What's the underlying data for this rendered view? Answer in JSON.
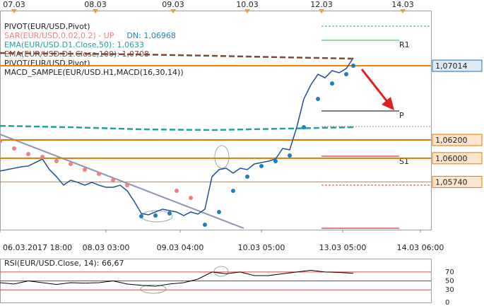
{
  "chart_data": {
    "type": "line",
    "legend": {
      "pivot": "PIVOT(EUR/USD,Pivot)",
      "pivot2": "PIVOT(EUR/USD,Pivot)",
      "macd": "MACD_SAMPLE(EUR/USD.H1,MACD(16,30,14))"
    },
    "level_names": {
      "r1": "R1",
      "p": "P",
      "s1": "S1"
    },
    "xlim": [
      0,
      122
    ],
    "xticks": [
      {
        "value": 0,
        "label": "06.03.2017 18:00"
      },
      {
        "value": 30,
        "label": "08.03 03:00"
      },
      {
        "value": 51,
        "label": "09.03 04:00"
      },
      {
        "value": 74,
        "label": "10.03 05:00"
      },
      {
        "value": 97,
        "label": "13.03 05:00"
      },
      {
        "value": 119,
        "label": "14.03 06:00"
      }
    ],
    "top_xticks": [
      {
        "value": 4,
        "label": "07.03"
      },
      {
        "value": 27,
        "label": "08.03"
      },
      {
        "value": 49,
        "label": "09.03"
      },
      {
        "value": 70,
        "label": "10.03"
      },
      {
        "value": 91,
        "label": "12.03"
      },
      {
        "value": 114,
        "label": "14.03"
      }
    ],
    "ylim": [
      1.05216,
      1.07619
    ],
    "yticks": [
      {
        "value": 1.07014,
        "label": "1,07014"
      },
      {
        "value": 1.062,
        "label": "1,06200"
      },
      {
        "value": 1.06,
        "label": "1,06000"
      },
      {
        "value": 1.0574,
        "label": "1,05740"
      }
    ],
    "level_colors": [
      "#1e6fb0",
      "#e07b00",
      "#e07b00",
      "#e07b00"
    ],
    "level_widths": [
      2,
      2,
      2,
      1
    ],
    "series": [
      {
        "color": "#1f4e9a",
        "x": [
          0,
          2,
          4,
          6,
          8,
          10,
          12,
          14,
          16,
          18,
          20,
          22,
          24,
          26,
          28,
          30,
          32,
          34,
          36,
          38,
          40,
          42,
          44,
          46,
          48,
          50,
          52,
          54,
          56,
          58,
          60,
          62,
          64,
          66,
          68,
          70,
          72,
          74,
          76,
          78,
          80,
          82,
          84,
          86,
          88,
          90,
          92,
          94,
          96,
          98,
          100
        ],
        "values": [
          1.05859,
          1.05875,
          1.0589,
          1.05906,
          1.05914,
          1.05952,
          1.05991,
          1.05875,
          1.05797,
          1.05704,
          1.05759,
          1.05735,
          1.05704,
          1.05735,
          1.05704,
          1.05681,
          1.05681,
          1.05704,
          1.05642,
          1.05526,
          1.05394,
          1.05379,
          1.0541,
          1.05441,
          1.05425,
          1.0541,
          1.05371,
          1.0541,
          1.05387,
          1.05441,
          1.05797,
          1.05875,
          1.0589,
          1.05836,
          1.0589,
          1.05875,
          1.05937,
          1.05952,
          1.05968,
          1.05991,
          1.06107,
          1.06092,
          1.0634,
          1.0665,
          1.06805,
          1.06921,
          1.06882,
          1.0696,
          1.06937,
          1.06983,
          1.07099
        ]
      },
      {
        "name": "EMA(EUR/USD.D1.Close,50): 1,0633",
        "color": "#1fa39a",
        "dash": "8 4",
        "x": [
          0,
          20,
          40,
          60,
          80,
          100
        ],
        "values": [
          1.06355,
          1.0634,
          1.06317,
          1.06309,
          1.06324,
          1.0634
        ]
      },
      {
        "name": "EMA(EUR/USD.D1.Close,100): 1,0708",
        "color": "#7a4a3a",
        "dash": "8 4",
        "x": [
          0,
          20,
          40,
          60,
          80,
          100
        ],
        "values": [
          1.07154,
          1.07146,
          1.07138,
          1.07123,
          1.07107,
          1.07092
        ]
      }
    ],
    "sar": {
      "name": "SAR(EUR/USD,0.02,0.2) - UP",
      "dn_label": "DN: 1,06968",
      "up_color": "#f08080",
      "dn_color": "#1e7fb8",
      "above_x": [
        0,
        4,
        8,
        12,
        16,
        20,
        24,
        28,
        32,
        36,
        50,
        54
      ],
      "above": [
        1.06185,
        1.06107,
        1.06045,
        1.06014,
        1.05968,
        1.05937,
        1.05875,
        1.05828,
        1.05759,
        1.05704,
        1.05642,
        1.05565
      ],
      "below_x": [
        40,
        44,
        48,
        58,
        62,
        66,
        70,
        74,
        78,
        82,
        86,
        90,
        94,
        98,
        100
      ],
      "below": [
        1.05363,
        1.05371,
        1.05394,
        1.0527,
        1.0541,
        1.05642,
        1.05797,
        1.05914,
        1.05968,
        1.0603,
        1.0634,
        1.0665,
        1.0682,
        1.06921,
        1.07014
      ]
    },
    "rsi": {
      "name": "RSI(EUR/USD.Close, 14): 66,67",
      "color": "#000000",
      "ylim": [
        0,
        100
      ],
      "yticks": [
        70,
        50,
        30,
        0
      ],
      "x": [
        0,
        4,
        8,
        12,
        16,
        20,
        24,
        28,
        32,
        36,
        40,
        44,
        48,
        52,
        56,
        60,
        64,
        68,
        72,
        76,
        80,
        84,
        88,
        92,
        96,
        100
      ],
      "values": [
        46,
        43,
        50,
        46,
        42,
        46,
        45,
        46,
        50,
        43,
        40,
        38,
        43,
        46,
        54,
        70,
        66,
        70,
        62,
        62,
        66,
        70,
        74,
        70,
        69,
        67
      ]
    }
  }
}
